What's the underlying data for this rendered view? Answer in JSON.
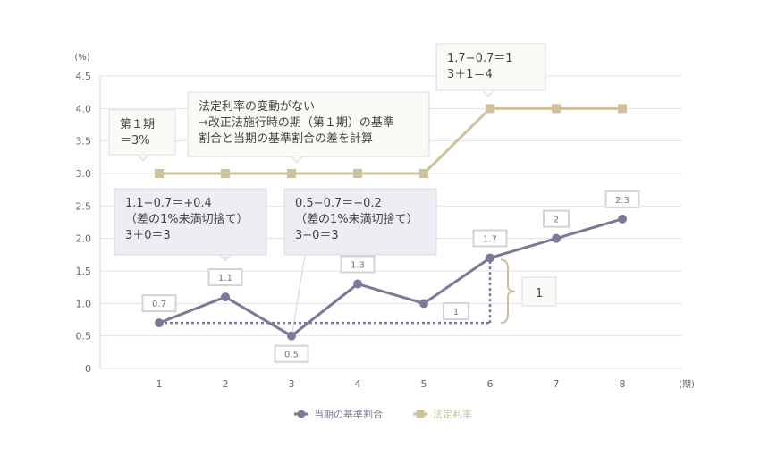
{
  "chart_data": {
    "type": "line",
    "categories": [
      "1",
      "2",
      "3",
      "4",
      "5",
      "6",
      "7",
      "8"
    ],
    "xunit": "(期)",
    "yunit": "(%)",
    "yticks": [
      "0",
      "0.5",
      "1.0",
      "1.5",
      "2.0",
      "2.5",
      "3.0",
      "3.5",
      "4.0",
      "4.5"
    ],
    "ylim": [
      0,
      4.5
    ],
    "grid": true,
    "legend_position": "bottom",
    "series": [
      {
        "name": "当期の基準割合",
        "color": "#7a7a98",
        "marker": "circle",
        "values": [
          0.7,
          1.1,
          0.5,
          1.3,
          1.0,
          1.7,
          2.0,
          2.3
        ],
        "labels": [
          "0.7",
          "1.1",
          "0.5",
          "1.3",
          "",
          "1.7",
          "2",
          "2.3"
        ]
      },
      {
        "name": "法定利率",
        "color": "#cfc19a",
        "marker": "square",
        "values": [
          3,
          3,
          3,
          3,
          3,
          4,
          4,
          4
        ]
      }
    ],
    "reference_line": {
      "value": 0.7,
      "from": 1,
      "to": 6
    },
    "annotations": {
      "diff_label": "1",
      "brace_label": "1",
      "note_period1": [
        "第１期",
        "＝3%"
      ],
      "note_no_change": [
        "法定利率の変動がない",
        "→改正法施行時の期（第１期）の基準",
        "割合と当期の基準割合の差を計算"
      ],
      "note_period6": [
        "1.7−0.7＝1",
        "3＋1＝4"
      ],
      "note_period2": [
        "1.1−0.7＝+0.4",
        "（差の1%未満切捨て）",
        "3＋0＝3"
      ],
      "note_period3": [
        "0.5−0.7＝−0.2",
        "（差の1%未満切捨て）",
        "3−0＝3"
      ]
    }
  }
}
